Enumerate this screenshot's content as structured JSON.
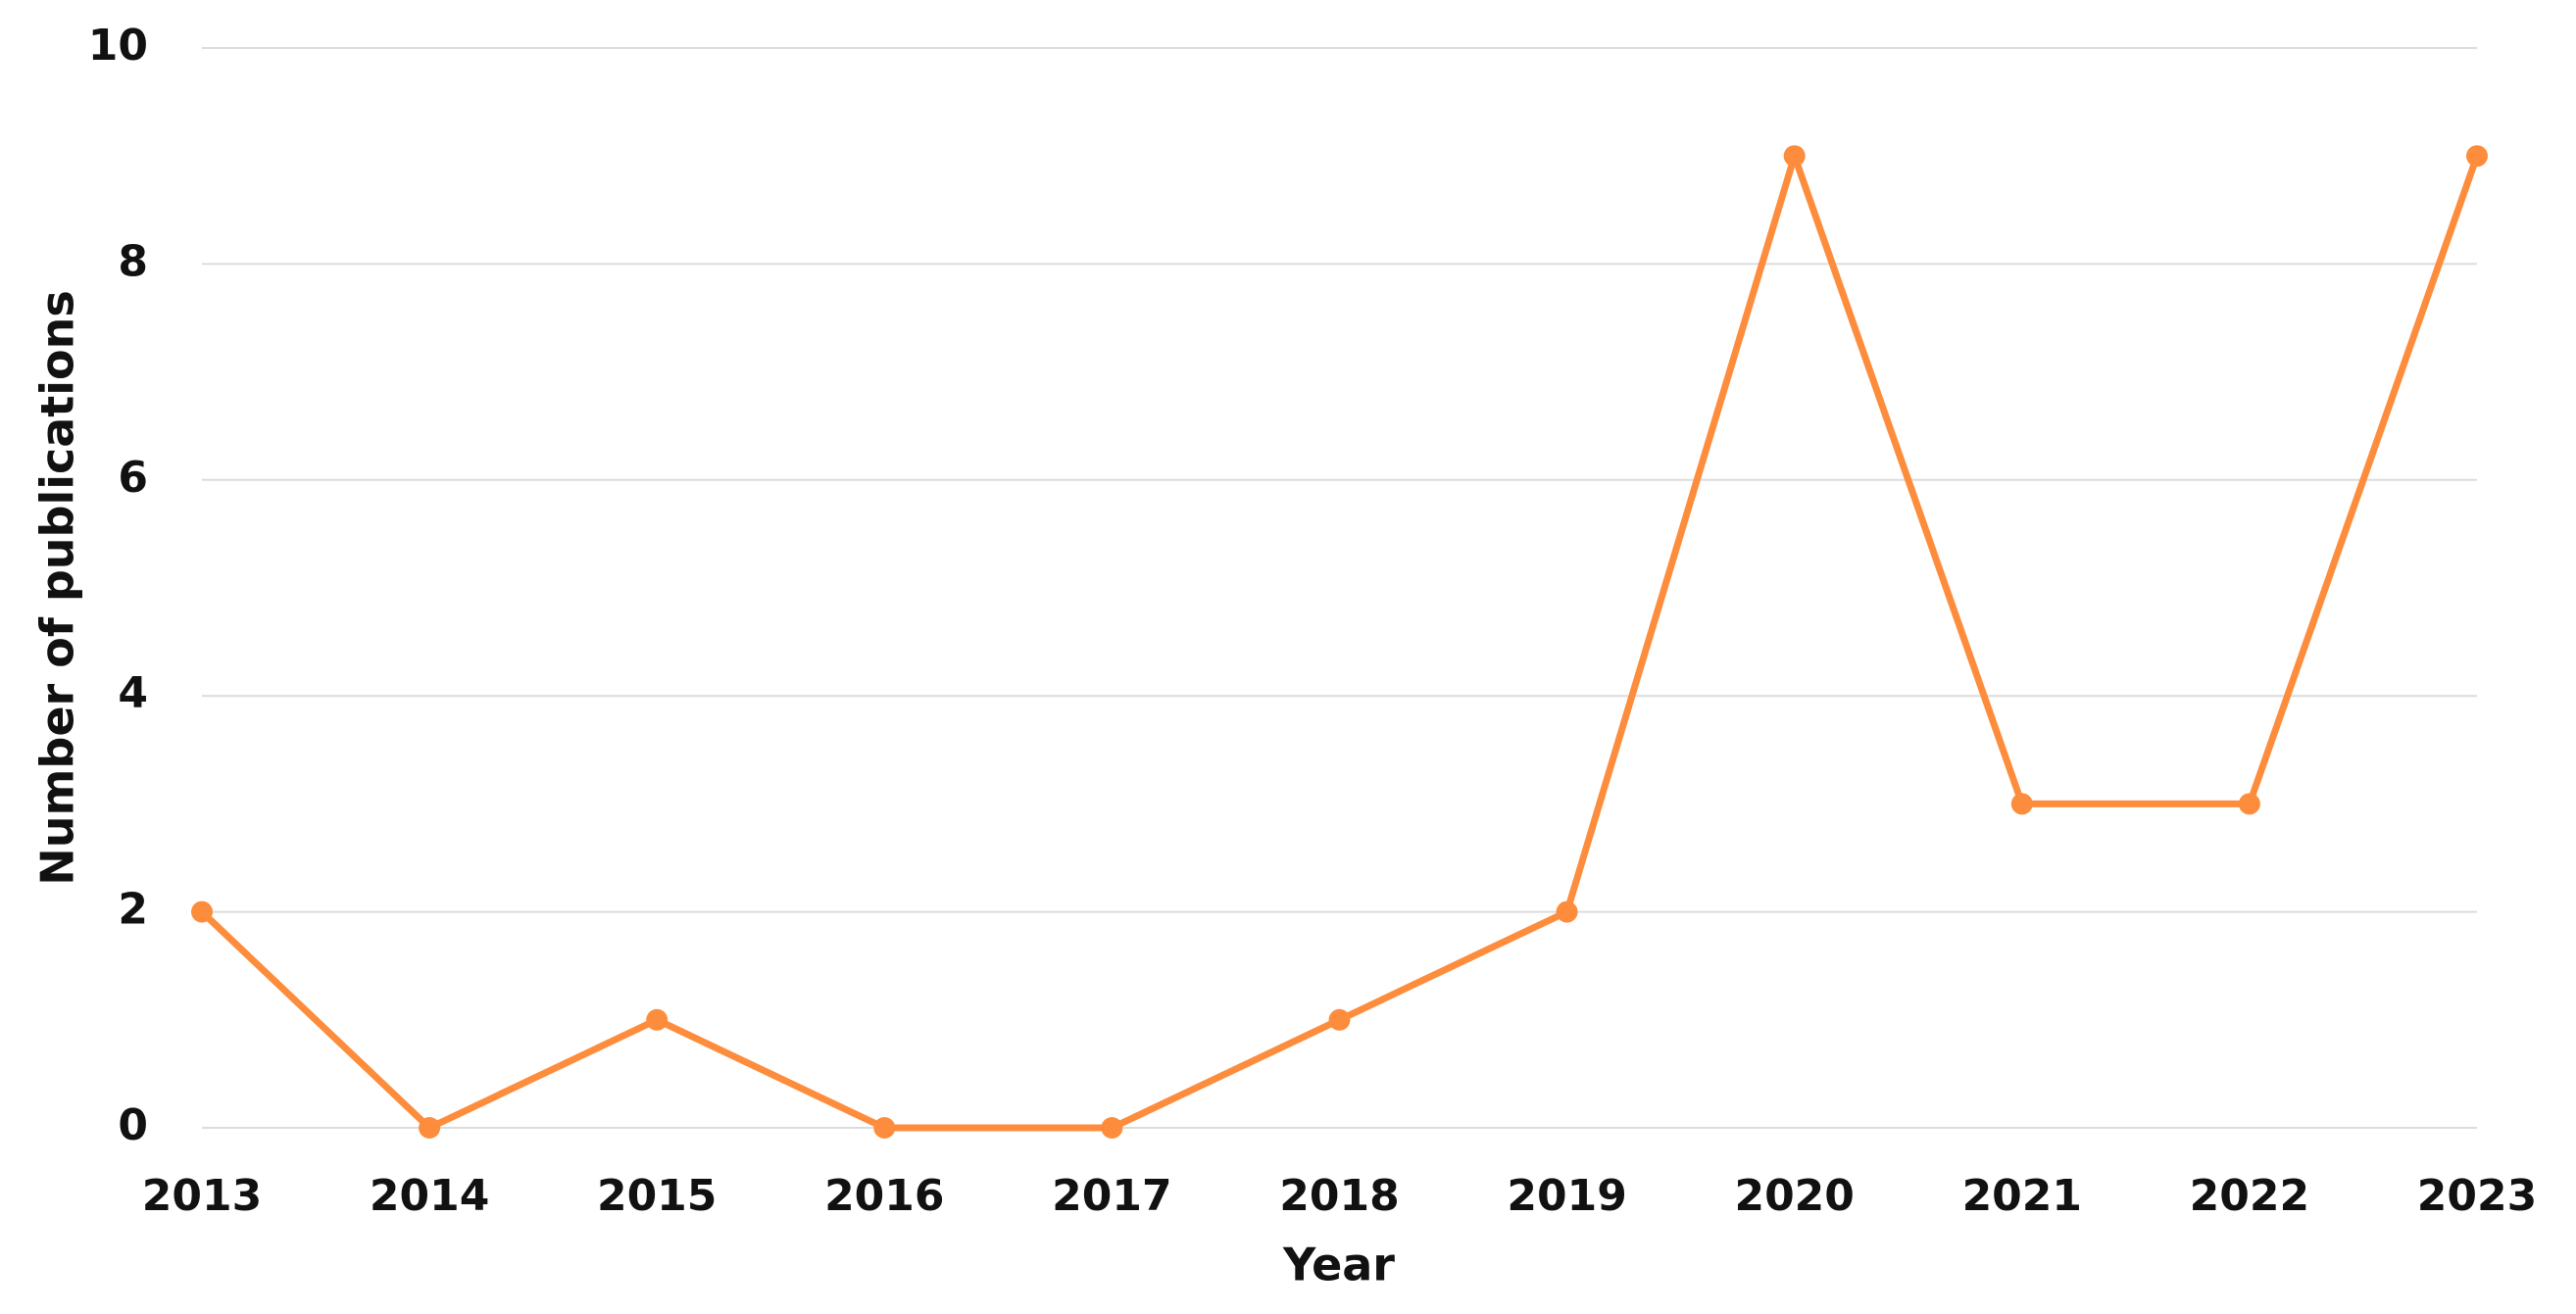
{
  "chart_data": {
    "type": "line",
    "x_label": "Year",
    "y_label": "Number of publications",
    "categories": [
      "2013",
      "2014",
      "2015",
      "2016",
      "2017",
      "2018",
      "2019",
      "2020",
      "2021",
      "2022",
      "2023"
    ],
    "series": [
      {
        "name": "Number of publications",
        "color": "#fd8d3c",
        "values": [
          2,
          0,
          1,
          0,
          0,
          1,
          2,
          9,
          3,
          3,
          9
        ]
      }
    ],
    "ylim": [
      0,
      10
    ],
    "yticks": [
      0,
      2,
      4,
      6,
      8,
      10
    ],
    "grid": true,
    "legend": false
  }
}
